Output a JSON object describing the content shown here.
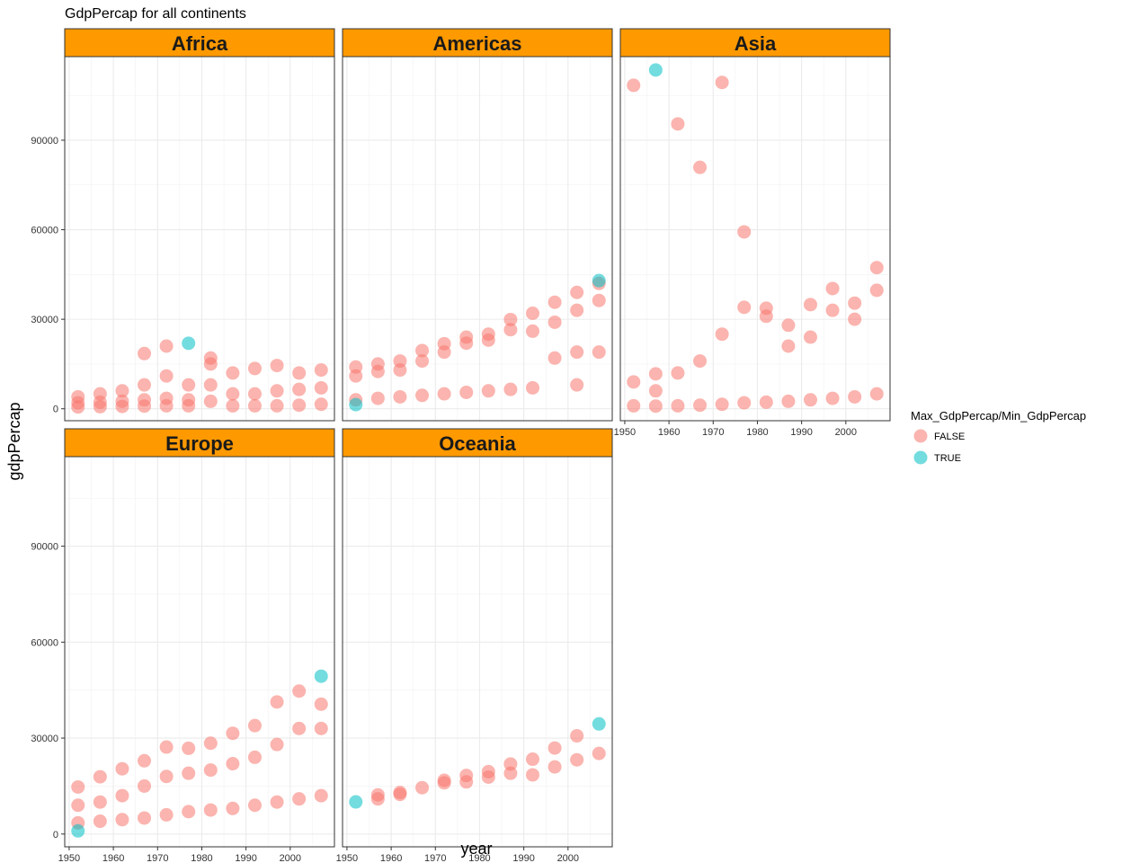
{
  "chart_data": {
    "type": "scatter",
    "title": "GdpPercap for all continents",
    "xlabel": "year",
    "ylabel": "gdpPercap",
    "xlim": [
      1949,
      2010
    ],
    "ylim": [
      -4000,
      118000
    ],
    "x_ticks": [
      1950,
      1960,
      1970,
      1980,
      1990,
      2000
    ],
    "y_ticks": [
      0,
      30000,
      60000,
      90000
    ],
    "grid": true,
    "legend": {
      "title": "Max_GdpPercap/Min_GdpPercap",
      "position": "right",
      "entries": [
        {
          "label": "FALSE",
          "color": "#F8766D"
        },
        {
          "label": "TRUE",
          "color": "#00BFC4"
        }
      ]
    },
    "strip_color": "#FF9900",
    "panels": [
      {
        "name": "Africa",
        "series": [
          {
            "name": "FALSE",
            "x": [
              1952,
              1952,
              1952,
              1957,
              1957,
              1957,
              1962,
              1962,
              1962,
              1967,
              1967,
              1967,
              1967,
              1972,
              1972,
              1972,
              1972,
              1977,
              1977,
              1977,
              1982,
              1982,
              1982,
              1982,
              1987,
              1987,
              1987,
              1992,
              1992,
              1992,
              1997,
              1997,
              1997,
              2002,
              2002,
              2002,
              2007,
              2007,
              2007
            ],
            "y": [
              4000,
              2000,
              600,
              5000,
              2200,
              700,
              6000,
              2500,
              800,
              18500,
              8000,
              3000,
              900,
              21000,
              11000,
              3500,
              1000,
              8000,
              3000,
              1000,
              17000,
              15000,
              8000,
              2500,
              12000,
              5000,
              1000,
              13500,
              5000,
              1000,
              14500,
              6000,
              1000,
              12000,
              6500,
              1200,
              13000,
              7000,
              1500
            ]
          },
          {
            "name": "TRUE",
            "x": [
              1977
            ],
            "y": [
              21951
            ]
          }
        ]
      },
      {
        "name": "Americas",
        "series": [
          {
            "name": "FALSE",
            "x": [
              1952,
              1952,
              1952,
              1957,
              1957,
              1957,
              1962,
              1962,
              1962,
              1967,
              1967,
              1967,
              1972,
              1972,
              1972,
              1977,
              1977,
              1977,
              1982,
              1982,
              1982,
              1987,
              1987,
              1987,
              1992,
              1992,
              1992,
              1997,
              1997,
              1997,
              2002,
              2002,
              2002,
              2002,
              2007,
              2007,
              2007
            ],
            "y": [
              13990,
              11000,
              3000,
              15000,
              12500,
              3500,
              16000,
              13000,
              4000,
              19500,
              16000,
              4500,
              21800,
              19000,
              5000,
              24000,
              22000,
              5500,
              25000,
              23000,
              6000,
              29900,
              26500,
              6500,
              32000,
              26000,
              7000,
              35700,
              29000,
              17000,
              39000,
              33000,
              19000,
              8000,
              42000,
              36300,
              19000
            ]
          },
          {
            "name": "TRUE",
            "x": [
              1952,
              2007
            ],
            "y": [
              1400,
              42951
            ]
          }
        ]
      },
      {
        "name": "Asia",
        "series": [
          {
            "name": "FALSE",
            "x": [
              1952,
              1952,
              1952,
              1957,
              1957,
              1957,
              1962,
              1962,
              1962,
              1967,
              1967,
              1967,
              1972,
              1972,
              1972,
              1977,
              1977,
              1977,
              1982,
              1982,
              1982,
              1987,
              1987,
              1987,
              1992,
              1992,
              1992,
              1997,
              1997,
              1997,
              2002,
              2002,
              2002,
              2007,
              2007,
              2007
            ],
            "y": [
              108382,
              9000,
              1000,
              11700,
              6000,
              900,
              95458,
              12000,
              1000,
              80895,
              16000,
              1200,
              109348,
              25000,
              1500,
              59265,
              34000,
              2000,
              33700,
              31000,
              2200,
              28000,
              21000,
              2500,
              34900,
              24000,
              3000,
              40300,
              33000,
              3500,
              35400,
              30000,
              4000,
              47300,
              39700,
              5000
            ]
          },
          {
            "name": "TRUE",
            "x": [
              1957
            ],
            "y": [
              113523
            ]
          }
        ]
      },
      {
        "name": "Europe",
        "series": [
          {
            "name": "FALSE",
            "x": [
              1952,
              1952,
              1952,
              1957,
              1957,
              1957,
              1962,
              1962,
              1962,
              1967,
              1967,
              1967,
              1972,
              1972,
              1972,
              1977,
              1977,
              1977,
              1982,
              1982,
              1982,
              1987,
              1987,
              1987,
              1992,
              1992,
              1992,
              1997,
              1997,
              1997,
              2002,
              2002,
              2002,
              2007,
              2007,
              2007
            ],
            "y": [
              14700,
              9000,
              3500,
              17900,
              10000,
              4000,
              20400,
              12000,
              4500,
              22900,
              15000,
              5000,
              27200,
              18000,
              6000,
              26800,
              19000,
              7000,
              28400,
              20000,
              7500,
              31500,
              22000,
              8000,
              33900,
              24000,
              9000,
              41300,
              28000,
              10000,
              44700,
              33000,
              11000,
              40600,
              33000,
              12000
            ]
          },
          {
            "name": "TRUE",
            "x": [
              1952,
              2007
            ],
            "y": [
              973,
              49357
            ]
          }
        ]
      },
      {
        "name": "Oceania",
        "series": [
          {
            "name": "FALSE",
            "x": [
              1957,
              1957,
              1962,
              1962,
              1967,
              1972,
              1972,
              1977,
              1977,
              1982,
              1982,
              1987,
              1987,
              1992,
              1992,
              1997,
              1997,
              2002,
              2002,
              2007
            ],
            "y": [
              12250,
              11000,
              13000,
              12400,
              14500,
              16800,
              16000,
              18300,
              16300,
              19500,
              17800,
              21900,
              19000,
              23400,
              18500,
              26900,
              21000,
              30700,
              23200,
              25200
            ]
          },
          {
            "name": "TRUE",
            "x": [
              1952,
              2007
            ],
            "y": [
              10040,
              34435
            ]
          }
        ]
      }
    ]
  }
}
